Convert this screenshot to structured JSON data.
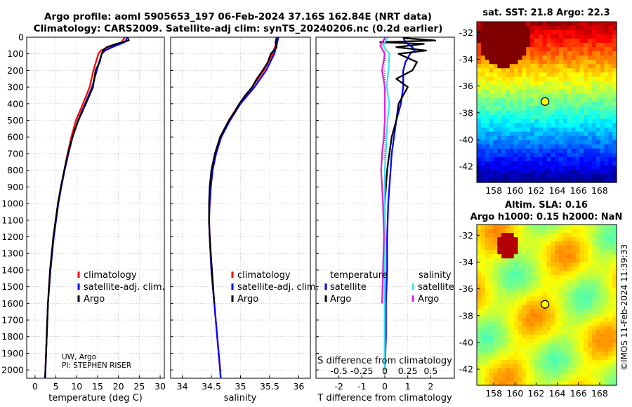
{
  "title_line1": "Argo profile: aoml 5905653_197 06-Feb-2024 37.16S 162.84E (NRT data)",
  "title_line2": "Climatology: CARS2009. Satellite-adj clim: synTS_20240206.nc (0.2d earlier)",
  "credit_line1": "UW, Argo",
  "credit_line2": "PI: STEPHEN RISER",
  "timestamp": "©IMOS 11-Feb-2024 11:39:33",
  "colors": {
    "climatology": "#ff0000",
    "satellite": "#0000ff",
    "argo": "#000000",
    "sat_salinity": "#40e0e8",
    "argo_salinity": "#e020e0"
  },
  "chart_data": [
    {
      "type": "line",
      "name": "temperature",
      "xlabel": "temperature (deg C)",
      "ylabel": "",
      "xlim": [
        -2,
        31
      ],
      "ylim": [
        0,
        2050
      ],
      "xticks": [
        0,
        5,
        10,
        15,
        20,
        25,
        30
      ],
      "yticks": [
        0,
        100,
        200,
        300,
        400,
        500,
        600,
        700,
        800,
        900,
        1000,
        1100,
        1200,
        1300,
        1400,
        1500,
        1600,
        1700,
        1800,
        1900,
        2000
      ],
      "legend": [
        "climatology",
        "satellite-adj. clim.",
        "Argo"
      ],
      "series": [
        {
          "name": "climatology",
          "depth": [
            0,
            30,
            60,
            80,
            100,
            150,
            200,
            300,
            400,
            500,
            600,
            700,
            800,
            900,
            1000,
            1200,
            1400,
            1600,
            1800,
            2000,
            2050
          ],
          "values": [
            21.5,
            20.8,
            17.5,
            15.8,
            15.2,
            14.6,
            14.0,
            13.1,
            11.5,
            9.8,
            8.7,
            7.8,
            7.0,
            6.2,
            5.5,
            4.4,
            3.6,
            3.1,
            2.8,
            2.5,
            2.4
          ]
        },
        {
          "name": "satellite-adj. clim.",
          "depth": [
            0,
            30,
            60,
            80,
            100,
            150,
            200,
            300,
            400,
            500,
            600,
            700,
            800,
            900,
            1000,
            1200,
            1400,
            1600,
            1800,
            2000,
            2050
          ],
          "values": [
            22.2,
            21.5,
            18.5,
            16.8,
            16.0,
            15.4,
            14.8,
            13.7,
            12.0,
            10.3,
            9.0,
            8.0,
            7.1,
            6.3,
            5.6,
            4.5,
            3.7,
            3.1,
            2.8,
            2.5,
            2.4
          ]
        },
        {
          "name": "Argo",
          "depth": [
            5,
            20,
            40,
            60,
            80,
            100,
            150,
            200,
            250,
            300,
            400,
            500,
            600,
            700,
            800,
            900,
            1000,
            1200,
            1400,
            1600,
            1800,
            2000,
            2050
          ],
          "values": [
            22.3,
            22.5,
            19.5,
            17.2,
            16.3,
            16.0,
            15.5,
            14.5,
            14.2,
            13.9,
            12.2,
            10.4,
            9.0,
            7.9,
            7.0,
            6.2,
            5.5,
            4.4,
            3.6,
            3.1,
            2.8,
            2.5,
            2.45
          ]
        }
      ]
    },
    {
      "type": "line",
      "name": "salinity",
      "xlabel": "salinity",
      "xlim": [
        33.8,
        36.2
      ],
      "ylim": [
        0,
        2050
      ],
      "xticks": [
        34,
        34.5,
        35,
        35.5,
        36
      ],
      "legend": [
        "climatology",
        "satellite-adj. clim.",
        "Argo"
      ],
      "series": [
        {
          "name": "climatology",
          "depth": [
            0,
            50,
            100,
            200,
            300,
            400,
            500,
            600,
            700,
            800,
            900,
            1000,
            1100,
            1200,
            1400,
            1600,
            1800,
            2000,
            2050
          ],
          "values": [
            35.62,
            35.6,
            35.55,
            35.4,
            35.2,
            34.98,
            34.8,
            34.66,
            34.58,
            34.52,
            34.49,
            34.47,
            34.46,
            34.47,
            34.5,
            34.55,
            34.6,
            34.65,
            34.66
          ]
        },
        {
          "name": "satellite-adj. clim.",
          "depth": [
            0,
            50,
            100,
            200,
            300,
            400,
            500,
            600,
            700,
            800,
            900,
            1000,
            1100,
            1200,
            1400,
            1600,
            1800,
            2000,
            2050
          ],
          "values": [
            35.65,
            35.62,
            35.58,
            35.44,
            35.24,
            35.0,
            34.82,
            34.67,
            34.58,
            34.52,
            34.49,
            34.47,
            34.46,
            34.47,
            34.5,
            34.55,
            34.6,
            34.65,
            34.66
          ]
        },
        {
          "name": "Argo",
          "depth": [
            5,
            30,
            60,
            100,
            150,
            200,
            250,
            300,
            350,
            400,
            450,
            500,
            600,
            700,
            800,
            900,
            1000,
            1100,
            1200,
            1300,
            1400,
            1500,
            1600
          ],
          "values": [
            35.62,
            35.6,
            35.62,
            35.52,
            35.47,
            35.38,
            35.28,
            35.2,
            35.08,
            34.98,
            34.9,
            34.8,
            34.65,
            34.56,
            34.5,
            34.47,
            34.46,
            34.46,
            34.47,
            34.49,
            34.51,
            34.53,
            34.55
          ]
        }
      ]
    },
    {
      "type": "line",
      "name": "difference from climatology",
      "xlabel": "T difference from climatology",
      "top_xlabel": "S difference from climatology",
      "xlim": [
        -3,
        3
      ],
      "ylim": [
        0,
        2050
      ],
      "xticks": [
        -2,
        -1,
        0,
        1,
        2
      ],
      "top_ticks": [
        "-0.5",
        "-0.25",
        "0",
        "0.25",
        "0.5"
      ],
      "legend_headers": [
        "temperature",
        "salinity"
      ],
      "legend_left": [
        "satellite",
        "Argo"
      ],
      "legend_right": [
        "satellite",
        "Argo"
      ],
      "series": [
        {
          "name": "T satellite",
          "depth": [
            0,
            30,
            60,
            80,
            100,
            150,
            200,
            300,
            400,
            500,
            600,
            700,
            800,
            900,
            1000,
            1200,
            1400,
            1600,
            1800,
            2000
          ],
          "values": [
            0.8,
            0.9,
            1.2,
            1.3,
            1.1,
            0.9,
            0.8,
            0.8,
            0.7,
            0.5,
            0.4,
            0.3,
            0.25,
            0.2,
            0.15,
            0.1,
            0.1,
            0.05,
            0.05,
            0.0
          ]
        },
        {
          "name": "T Argo",
          "depth": [
            5,
            20,
            30,
            40,
            60,
            80,
            100,
            150,
            200,
            250,
            300,
            400,
            500,
            600,
            700,
            800,
            900,
            1000,
            1200,
            1400,
            1600,
            1800,
            2000
          ],
          "values": [
            0.8,
            2.2,
            -0.2,
            1.7,
            0.5,
            1.8,
            0.6,
            1.4,
            1.2,
            0.5,
            1.0,
            0.6,
            0.5,
            0.3,
            0.2,
            0.1,
            0.05,
            0.0,
            0.0,
            0.0,
            0.0,
            0.0,
            0.0
          ]
        },
        {
          "name": "S satellite",
          "depth": [
            0,
            50,
            100,
            200,
            300,
            400,
            500,
            600,
            700,
            800,
            900,
            1000,
            1200,
            1400,
            1600,
            1800,
            2000
          ],
          "values": [
            0.03,
            -0.02,
            0.05,
            0.04,
            0.02,
            0.05,
            0.03,
            0.02,
            0.01,
            0.0,
            0.0,
            0.0,
            0.0,
            0.0,
            0.0,
            0.0,
            0.0
          ]
        },
        {
          "name": "S Argo",
          "depth": [
            5,
            50,
            100,
            200,
            300,
            400,
            500,
            600,
            700,
            800,
            900,
            1000,
            1200,
            1400,
            1600
          ],
          "values": [
            0.0,
            -0.05,
            0.0,
            -0.03,
            0.0,
            0.0,
            0.0,
            -0.01,
            -0.03,
            -0.04,
            -0.03,
            -0.02,
            -0.01,
            -0.02,
            -0.03
          ]
        }
      ]
    },
    {
      "type": "heatmap",
      "name": "sst map",
      "title": "sat. SST: 21.8 Argo: 22.3",
      "xticks": [
        158,
        160,
        162,
        164,
        166,
        168
      ],
      "yticks": [
        -32,
        -34,
        -36,
        -38,
        -40,
        -42
      ],
      "xlim": [
        156.4,
        169.6
      ],
      "ylim": [
        -43.2,
        -31.2
      ],
      "marker": {
        "lon": 162.84,
        "lat": -37.16
      }
    },
    {
      "type": "heatmap",
      "name": "sla map",
      "title_line1": "Altim. SLA: 0.16",
      "title_line2": "Argo h1000: 0.15 h2000: NaN",
      "xticks": [
        158,
        160,
        162,
        164,
        166,
        168
      ],
      "yticks": [
        -32,
        -34,
        -36,
        -38,
        -40,
        -42
      ],
      "xlim": [
        156.4,
        169.6
      ],
      "ylim": [
        -43.2,
        -31.2
      ],
      "marker": {
        "lon": 162.84,
        "lat": -37.16
      }
    }
  ]
}
